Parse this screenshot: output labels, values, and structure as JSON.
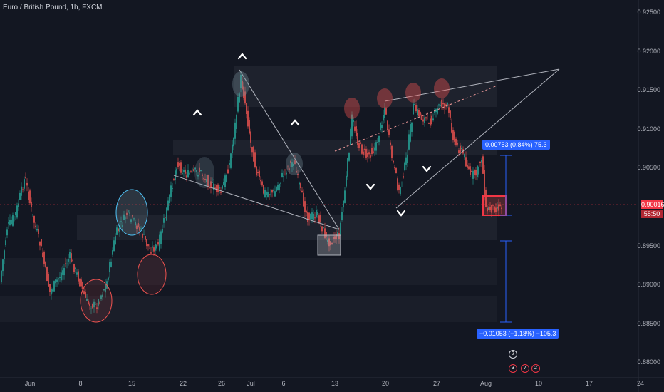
{
  "header": {
    "symbol_title": "Euro / British Pound, 1h, FXCM"
  },
  "price_axis": {
    "ticks": [
      "0.92500",
      "0.92000",
      "0.91500",
      "0.91000",
      "0.90500",
      "0.90000",
      "0.89500",
      "0.89000",
      "0.88500",
      "0.88000"
    ],
    "current_price": "0.90016",
    "countdown": "55:50"
  },
  "time_axis": {
    "ticks": [
      "Jun",
      "8",
      "15",
      "22",
      "26",
      "Jul",
      "6",
      "13",
      "20",
      "27",
      "Aug",
      "10",
      "17",
      "24"
    ]
  },
  "measures": {
    "upper": "0.00753 (0.84%) 75.3",
    "lower": "−0.01053 (−1.18%) −105.3"
  },
  "events": {
    "top": "2",
    "bottom": [
      "3",
      "7",
      "2"
    ]
  },
  "colors": {
    "background": "#131722",
    "bull": "#26a69a",
    "bear": "#ef5350",
    "measure": "#2962ff",
    "price_tag": "#f23645"
  }
}
